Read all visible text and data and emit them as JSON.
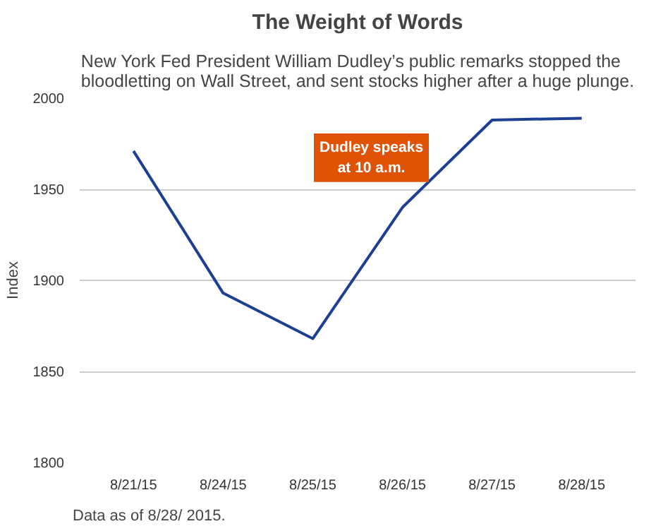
{
  "chart_data": {
    "type": "line",
    "title": "The Weight of Words",
    "subtitle": "New York Fed President William Dudley’s public remarks stopped the bloodletting on Wall Street, and sent stocks higher after a huge plunge.",
    "ylabel": "Index",
    "categories": [
      "8/21/15",
      "8/24/15",
      "8/25/15",
      "8/26/15",
      "8/27/15",
      "8/28/15"
    ],
    "series": [
      {
        "color": "#1c3f94",
        "values": [
          1971,
          1893,
          1868,
          1940,
          1988,
          1989
        ]
      }
    ],
    "ylim": [
      1800,
      2000
    ],
    "yticks": [
      1800,
      1850,
      1900,
      1950,
      2000
    ],
    "grid": "y",
    "marker": "none",
    "line_style": "solid",
    "annotations": [
      {
        "text": "Dudley speaks at 10 a.m.",
        "x": "8/26/15",
        "y": 1940
      },
      "Data as of 8/28/ 2015."
    ]
  }
}
